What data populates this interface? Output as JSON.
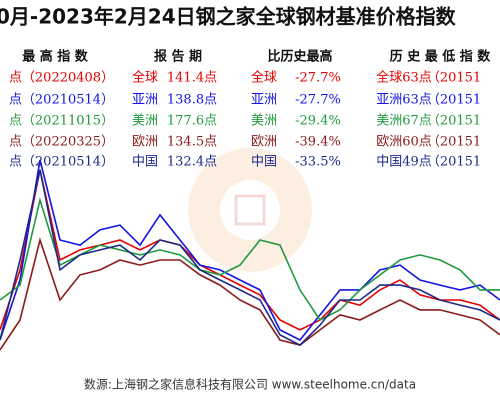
{
  "chart_data": {
    "type": "line",
    "title": "0月-2023年2月24日钢之家全球钢材基准价格指数",
    "categories": [
      null,
      null,
      null,
      null,
      null,
      null,
      null,
      null,
      null,
      null,
      null,
      null,
      null,
      null,
      null,
      null,
      null,
      null,
      null,
      null,
      null,
      null,
      null,
      null,
      null,
      null
    ],
    "ylim": [
      60,
      150
    ],
    "series": [
      {
        "color": "#e60000",
        "values": [
          78.8,
          101.3,
          138.8,
          105,
          108.8,
          110.6,
          112.5,
          108.8,
          112.5,
          110.6,
          103.1,
          99.4,
          95.6,
          91.9,
          82.5,
          78.8,
          82.5,
          90,
          88.1,
          93.8,
          97.5,
          91.9,
          90,
          90,
          88.1,
          82.5
        ]
      },
      {
        "color": "#1414e6",
        "values": [
          75,
          97.5,
          142.5,
          112.5,
          110.6,
          116.3,
          118.1,
          110.6,
          121.9,
          112.5,
          103.1,
          101.3,
          97.5,
          93.8,
          78.8,
          75,
          84.4,
          93.8,
          93.8,
          101.3,
          103.1,
          97.5,
          95.6,
          93.8,
          95.6,
          90
        ]
      },
      {
        "color": "#1f9a3c",
        "values": [
          90,
          95.6,
          127.5,
          103.1,
          106.9,
          110.6,
          108.8,
          106.9,
          108.8,
          106.9,
          101.3,
          99.4,
          103.1,
          112.5,
          110.6,
          93.8,
          82.5,
          86.3,
          93.8,
          99.4,
          105,
          106.9,
          105,
          101.3,
          93.8,
          93.8
        ]
      },
      {
        "color": "#8b1a1a",
        "values": [
          71.3,
          82.5,
          112.5,
          90,
          99.4,
          101.3,
          105,
          103.1,
          105,
          105,
          99.4,
          95.6,
          90,
          86.3,
          75,
          73.1,
          78.8,
          84.4,
          82.5,
          86.3,
          90,
          86.3,
          86.3,
          84.4,
          82.5,
          76.9
        ]
      },
      {
        "color": "#1c2a8a",
        "values": [
          75,
          105,
          138.8,
          101.3,
          106.9,
          108.8,
          110.6,
          105,
          112.5,
          110.6,
          101.3,
          97.5,
          93.8,
          90,
          76.9,
          73.1,
          80.6,
          90,
          90,
          95.6,
          95.6,
          93.8,
          90,
          88.1,
          86.3,
          82.5
        ]
      }
    ]
  },
  "table": {
    "headers": [
      "最 高 指 数",
      "报 告 期",
      "比历史最高",
      "历 史 最 低 指 数"
    ],
    "rows": [
      [
        "点",
        "（20220408）",
        "全球",
        "141.4点",
        "全球",
        "-27.7%",
        "全球63点",
        "（20151"
      ],
      [
        "点",
        "（20210514）",
        "亚洲",
        "138.8点",
        "亚洲",
        "-27.7%",
        "亚洲63点",
        "（20151"
      ],
      [
        "点",
        "（20211015）",
        "美洲",
        "177.6点",
        "美洲",
        "-29.4%",
        "美洲67点",
        "（20151"
      ],
      [
        "点",
        "（20220325）",
        "欧洲",
        "134.5点",
        "欧洲",
        "-39.4%",
        "欧洲60点",
        "（20151"
      ],
      [
        "点",
        "（20210514）",
        "中国",
        "132.4点",
        "中国",
        "-33.5%",
        "中国49点",
        "（20151"
      ]
    ]
  },
  "source": "数源:上海钢之家信息科技有限公司 www.steelhome.cn/data"
}
